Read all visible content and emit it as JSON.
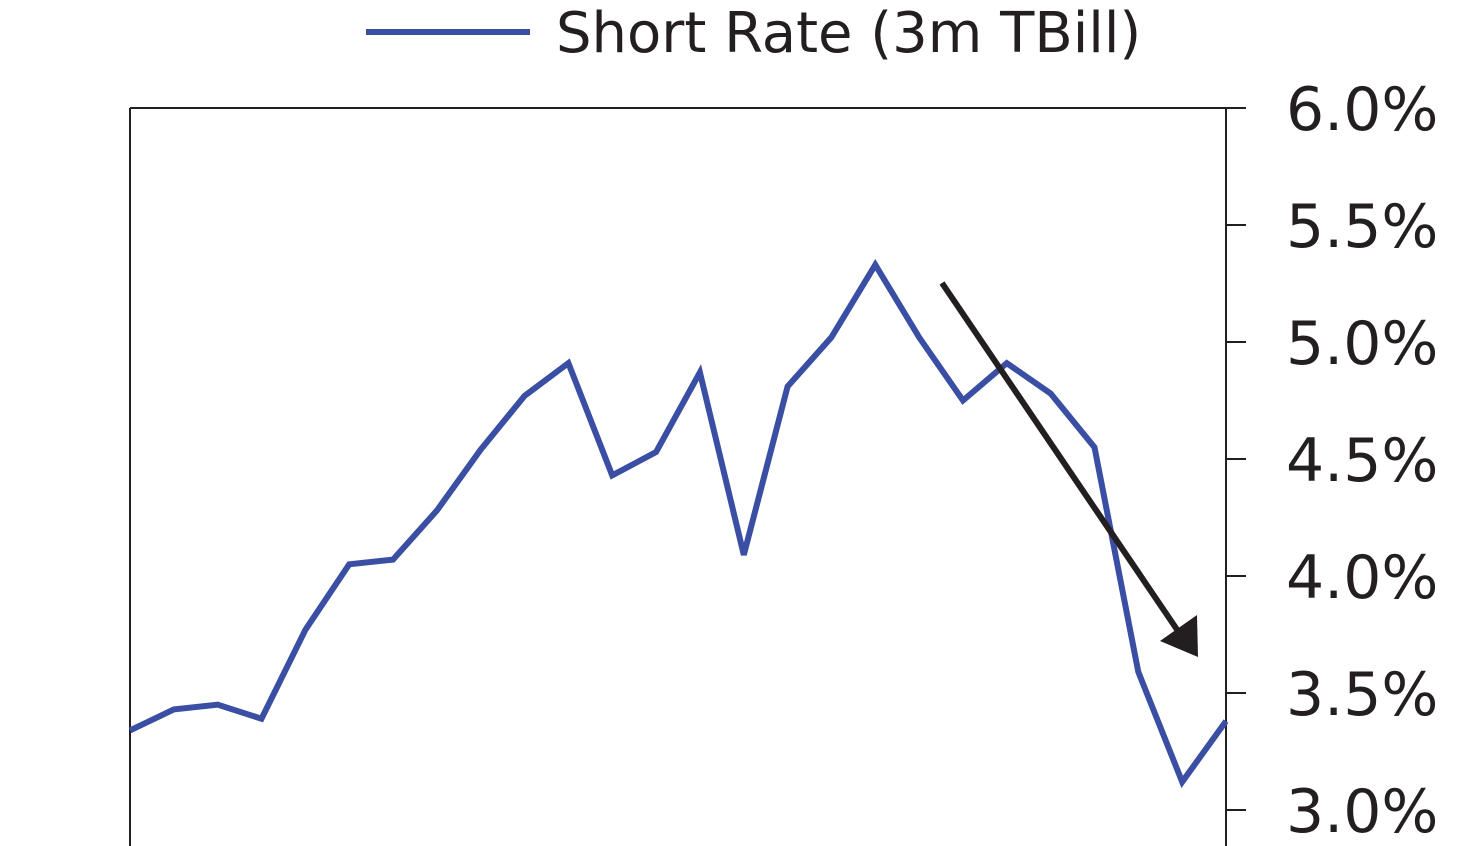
{
  "chart_data": {
    "type": "line",
    "title": "",
    "xlabel": "",
    "ylabel": "",
    "legend": {
      "position": "top-center",
      "entries": [
        "Short Rate (3m TBill)"
      ]
    },
    "y_axis": {
      "side": "right",
      "range": [
        3.0,
        6.0
      ],
      "ticks": [
        3.0,
        3.5,
        4.0,
        4.5,
        5.0,
        5.5,
        6.0
      ],
      "tick_labels": [
        "3.0%",
        "3.5%",
        "4.0%",
        "4.5%",
        "5.0%",
        "5.5%",
        "6.0%"
      ]
    },
    "grid": false,
    "series": [
      {
        "name": "Short Rate (3m TBill)",
        "color": "#3a4fa3",
        "values": [
          3.34,
          3.43,
          3.45,
          3.39,
          3.77,
          4.05,
          4.07,
          4.28,
          4.54,
          4.77,
          4.91,
          4.43,
          4.53,
          4.87,
          4.09,
          4.81,
          5.02,
          5.33,
          5.02,
          4.75,
          4.91,
          4.78,
          4.55,
          3.59,
          3.12,
          3.38
        ]
      }
    ],
    "annotations": [
      {
        "type": "arrow",
        "direction": "down-right",
        "color": "#231f20"
      }
    ]
  }
}
